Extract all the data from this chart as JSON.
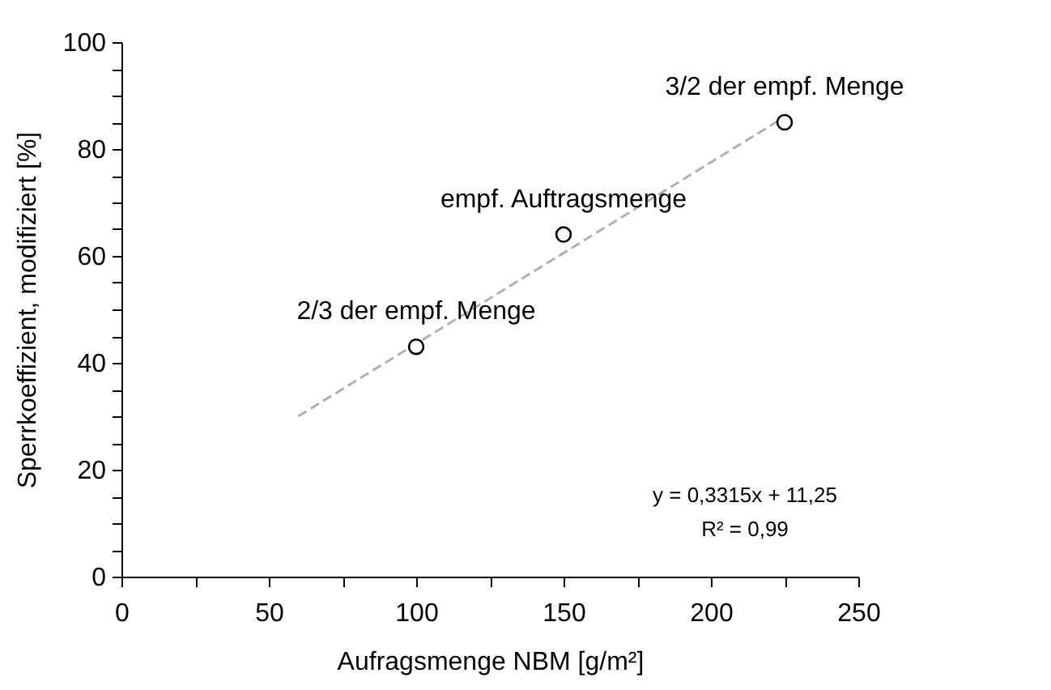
{
  "chart_data": {
    "type": "scatter",
    "xlabel": "Aufragsmenge NBM [g/m²]",
    "ylabel": "Sperrkoeffizient, modifiziert [%]",
    "series": [
      {
        "type": "scatter",
        "color": "#000000",
        "marker": "circle",
        "x": [
          100,
          150,
          225
        ],
        "values": [
          43,
          64,
          85
        ]
      },
      {
        "type": "line",
        "color": "#b0b0b0",
        "line_style": "dashed",
        "x": [
          60,
          225
        ],
        "values": [
          30,
          86
        ]
      }
    ],
    "annotations": [
      {
        "text": "2/3 der empf. Menge",
        "x": 100,
        "y": 43
      },
      {
        "text": "empf. Auftragsmenge",
        "x": 150,
        "y": 64
      },
      {
        "text": "3/2 der empf. Menge",
        "x": 225,
        "y": 85
      },
      "y = 0,3315x + 11,25",
      "R² = 0,99"
    ],
    "xlim": [
      0,
      250
    ],
    "ylim": [
      0,
      100
    ],
    "xticks": [
      0,
      {
        "value": 25,
        "label": null
      },
      50,
      {
        "value": 75,
        "label": null
      },
      100,
      {
        "value": 125,
        "label": null
      },
      150,
      {
        "value": 175,
        "label": null
      },
      200,
      {
        "value": 225,
        "label": null
      },
      250
    ],
    "yticks": [
      0,
      {
        "value": 5,
        "label": null
      },
      {
        "value": 10,
        "label": null
      },
      {
        "value": 15,
        "label": null
      },
      20,
      {
        "value": 25,
        "label": null
      },
      {
        "value": 30,
        "label": null
      },
      {
        "value": 35,
        "label": null
      },
      40,
      {
        "value": 45,
        "label": null
      },
      {
        "value": 50,
        "label": null
      },
      {
        "value": 55,
        "label": null
      },
      60,
      {
        "value": 65,
        "label": null
      },
      {
        "value": 70,
        "label": null
      },
      {
        "value": 75,
        "label": null
      },
      80,
      {
        "value": 85,
        "label": null
      },
      {
        "value": 90,
        "label": null
      },
      {
        "value": 95,
        "label": null
      },
      100
    ],
    "grid": false
  }
}
